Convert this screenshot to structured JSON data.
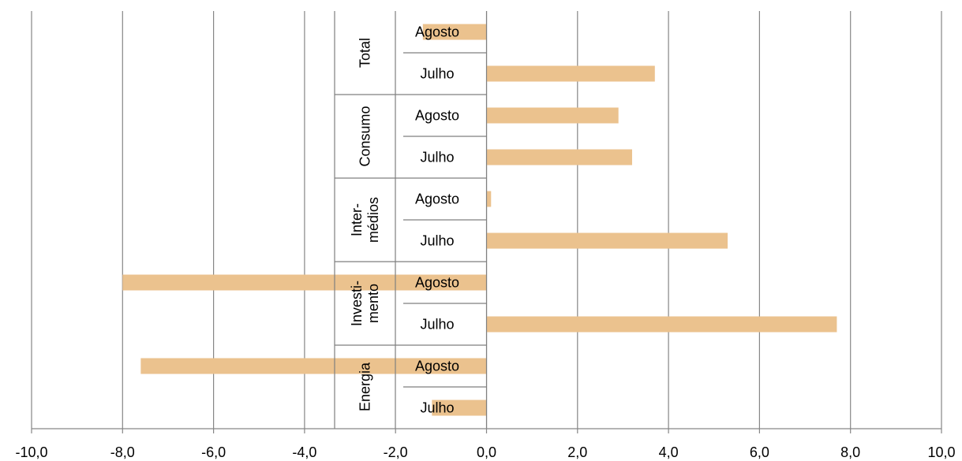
{
  "chart_data": {
    "type": "bar",
    "orientation": "horizontal",
    "title": "",
    "xlabel": "",
    "ylabel": "",
    "xlim": [
      -10,
      10
    ],
    "xticks": [
      "-10,0",
      "-8,0",
      "-6,0",
      "-4,0",
      "-2,0",
      "0,0",
      "2,0",
      "4,0",
      "6,0",
      "8,0",
      "10,0"
    ],
    "grid": "vertical",
    "bar_color": "#EBC28E",
    "groups": [
      {
        "name": "Total",
        "lines": [
          "Total"
        ],
        "bars": [
          {
            "label": "Agosto",
            "value": -1.4
          },
          {
            "label": "Julho",
            "value": 3.7
          }
        ]
      },
      {
        "name": "Consumo",
        "lines": [
          "Consumo"
        ],
        "bars": [
          {
            "label": "Agosto",
            "value": 2.9
          },
          {
            "label": "Julho",
            "value": 3.2
          }
        ]
      },
      {
        "name": "Inter-médios",
        "lines": [
          "Inter-",
          "médios"
        ],
        "bars": [
          {
            "label": "Agosto",
            "value": 0.1
          },
          {
            "label": "Julho",
            "value": 5.3
          }
        ]
      },
      {
        "name": "Investi-mento",
        "lines": [
          "Investi-",
          "mento"
        ],
        "bars": [
          {
            "label": "Agosto",
            "value": -8.0
          },
          {
            "label": "Julho",
            "value": 7.7
          }
        ]
      },
      {
        "name": "Energia",
        "lines": [
          "Energia"
        ],
        "bars": [
          {
            "label": "Agosto",
            "value": -7.6
          },
          {
            "label": "Julho",
            "value": -1.2
          }
        ]
      }
    ]
  }
}
